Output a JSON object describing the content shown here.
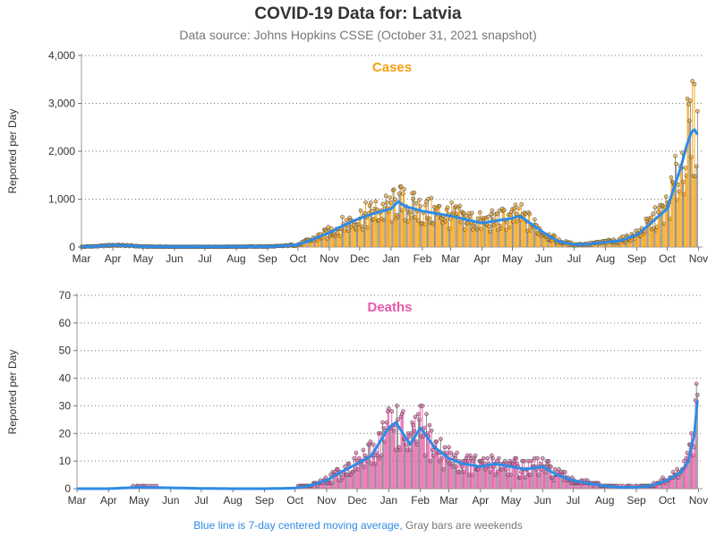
{
  "header": {
    "title": "COVID-19 Data for: Latvia",
    "subtitle": "Data source: Johns Hopkins CSSE (October 31, 2021 snapshot)"
  },
  "footnote": {
    "blue_text": "Blue line is 7-day centered moving average,",
    "gray_text": "Gray bars are weekends"
  },
  "colors": {
    "cases_bar": "#f5a00f",
    "deaths_bar": "#e55aa8",
    "moving_avg": "#2f8be6",
    "weekend_bar": "#888888",
    "cases_title": "#f5a00f",
    "deaths_title": "#e55aa8"
  },
  "chart_data": [
    {
      "type": "bar",
      "title": "Cases",
      "ylabel": "Reported per Day",
      "xlabel": "",
      "x_tick_labels": [
        "Mar",
        "Apr",
        "May",
        "Jun",
        "Jul",
        "Aug",
        "Sep",
        "Oct",
        "Nov",
        "Dec",
        "Jan",
        "Feb",
        "Mar",
        "Apr",
        "May",
        "Jun",
        "Jul",
        "Aug",
        "Sep",
        "Oct",
        "Nov"
      ],
      "x_ticks_month_start": [
        "2020-03-01",
        "2020-04-01",
        "2020-05-01",
        "2020-06-01",
        "2020-07-01",
        "2020-08-01",
        "2020-09-01",
        "2020-10-01",
        "2020-11-01",
        "2020-12-01",
        "2021-01-01",
        "2021-02-01",
        "2021-03-01",
        "2021-04-01",
        "2021-05-01",
        "2021-06-01",
        "2021-07-01",
        "2021-08-01",
        "2021-09-01",
        "2021-10-01",
        "2021-11-01"
      ],
      "ylim": [
        0,
        4000
      ],
      "y_ticks": [
        0,
        1000,
        2000,
        3000,
        4000
      ],
      "y_tick_labels": [
        "0",
        "1,000",
        "2,000",
        "3,000",
        "4,000"
      ],
      "grid": "horizontal dotted",
      "series": [
        {
          "name": "Blue line is 7-day centered moving average,",
          "style": "line",
          "x": [
            "2020-03-01",
            "2020-03-20",
            "2020-04-01",
            "2020-04-15",
            "2020-05-01",
            "2020-06-01",
            "2020-07-01",
            "2020-08-01",
            "2020-09-01",
            "2020-09-15",
            "2020-10-01",
            "2020-10-15",
            "2020-11-01",
            "2020-11-15",
            "2020-12-01",
            "2020-12-15",
            "2021-01-01",
            "2021-01-08",
            "2021-01-15",
            "2021-02-01",
            "2021-02-15",
            "2021-03-01",
            "2021-03-15",
            "2021-04-01",
            "2021-04-15",
            "2021-05-01",
            "2021-05-08",
            "2021-05-15",
            "2021-06-01",
            "2021-06-15",
            "2021-07-01",
            "2021-07-15",
            "2021-08-01",
            "2021-08-15",
            "2021-09-01",
            "2021-09-15",
            "2021-10-01",
            "2021-10-15",
            "2021-10-20",
            "2021-10-25",
            "2021-10-28",
            "2021-10-31"
          ],
          "y": [
            5,
            20,
            40,
            30,
            10,
            5,
            5,
            8,
            10,
            20,
            50,
            150,
            300,
            450,
            600,
            700,
            800,
            950,
            850,
            750,
            700,
            650,
            580,
            500,
            550,
            600,
            650,
            550,
            300,
            120,
            50,
            60,
            100,
            130,
            250,
            500,
            800,
            1700,
            2100,
            2400,
            2450,
            2350
          ]
        }
      ]
    },
    {
      "type": "bar",
      "title": "Deaths",
      "ylabel": "Reported per Day",
      "xlabel": "",
      "x_tick_labels": [
        "Mar",
        "Apr",
        "May",
        "Jun",
        "Jul",
        "Aug",
        "Sep",
        "Oct",
        "Nov",
        "Dec",
        "Jan",
        "Feb",
        "Mar",
        "Apr",
        "May",
        "Jun",
        "Jul",
        "Aug",
        "Sep",
        "Oct",
        "Nov"
      ],
      "x_ticks_month_start": [
        "2020-03-01",
        "2020-04-01",
        "2020-05-01",
        "2020-06-01",
        "2020-07-01",
        "2020-08-01",
        "2020-09-01",
        "2020-10-01",
        "2020-11-01",
        "2020-12-01",
        "2021-01-01",
        "2021-02-01",
        "2021-03-01",
        "2021-04-01",
        "2021-05-01",
        "2021-06-01",
        "2021-07-01",
        "2021-08-01",
        "2021-09-01",
        "2021-10-01",
        "2021-11-01"
      ],
      "ylim": [
        0,
        70
      ],
      "y_ticks": [
        0,
        10,
        20,
        30,
        40,
        50,
        60,
        70
      ],
      "y_tick_labels": [
        "0",
        "10",
        "20",
        "30",
        "40",
        "50",
        "60",
        "70"
      ],
      "grid": "horizontal dotted",
      "series": [
        {
          "name": "Blue line is 7-day centered moving average,",
          "style": "line",
          "x": [
            "2020-03-01",
            "2020-04-01",
            "2020-05-01",
            "2020-06-01",
            "2020-07-01",
            "2020-08-01",
            "2020-09-01",
            "2020-10-01",
            "2020-10-15",
            "2020-11-01",
            "2020-11-15",
            "2020-12-01",
            "2020-12-15",
            "2020-12-25",
            "2021-01-01",
            "2021-01-08",
            "2021-01-15",
            "2021-01-22",
            "2021-02-01",
            "2021-02-15",
            "2021-03-01",
            "2021-03-15",
            "2021-04-01",
            "2021-04-15",
            "2021-05-01",
            "2021-05-15",
            "2021-06-01",
            "2021-06-15",
            "2021-07-01",
            "2021-07-15",
            "2021-08-01",
            "2021-08-15",
            "2021-09-01",
            "2021-09-15",
            "2021-10-01",
            "2021-10-15",
            "2021-10-22",
            "2021-10-28",
            "2021-10-31"
          ],
          "y": [
            0,
            0,
            0.5,
            0.3,
            0.1,
            0,
            0,
            0.2,
            1,
            3,
            6,
            9,
            12,
            18,
            22,
            24,
            20,
            16,
            22,
            15,
            11,
            9,
            8,
            9,
            8,
            7,
            8,
            5,
            3,
            2,
            1,
            0.5,
            0.5,
            1,
            3,
            6,
            10,
            20,
            32
          ]
        }
      ]
    }
  ]
}
